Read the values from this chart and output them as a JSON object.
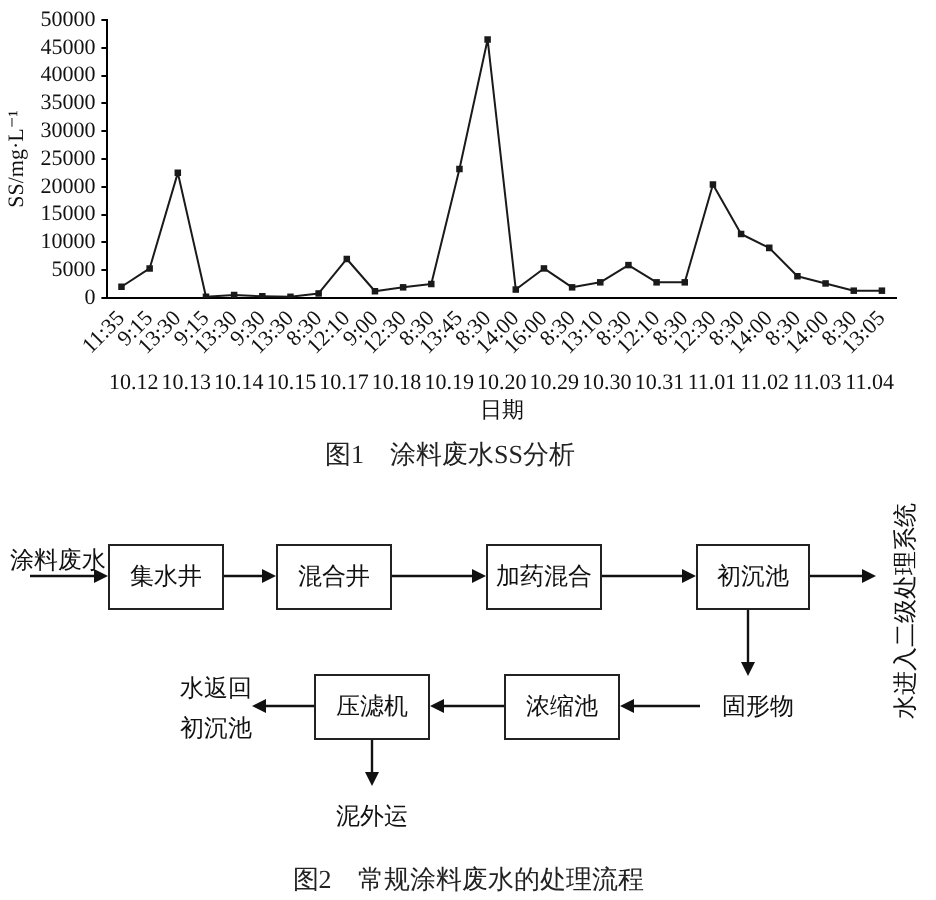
{
  "chart_data": [
    {
      "type": "line",
      "title": "图1　涂料废水SS分析",
      "xlabel": "日期",
      "ylabel": "SS/mg·L⁻¹",
      "categories": [
        "11:35",
        "9:15",
        "13:30",
        "9:15",
        "13:30",
        "9:30",
        "13:30",
        "8:30",
        "12:10",
        "9:00",
        "12:30",
        "8:30",
        "13:45",
        "8:30",
        "14:00",
        "16:00",
        "8:30",
        "13:10",
        "8:30",
        "12:10",
        "8:30",
        "12:30",
        "8:30",
        "14:00",
        "8:30",
        "14:00",
        "8:30",
        "13:05"
      ],
      "series": [
        {
          "color": "#1a1a1a",
          "values": [
            2000,
            5300,
            22500,
            200,
            500,
            300,
            200,
            800,
            7000,
            1200,
            1900,
            2500,
            23200,
            46500,
            1500,
            5300,
            1900,
            2800,
            5900,
            2800,
            2800,
            20400,
            11500,
            9000,
            3900,
            2600,
            1300,
            1300
          ]
        }
      ],
      "annotations": [
        "10.12",
        "10.13",
        "10.14",
        "10.15",
        "10.17",
        "10.18",
        "10.19",
        "10.20",
        "10.29",
        "10.30",
        "10.31",
        "11.01",
        "11.02",
        "11.03",
        "11.04"
      ],
      "ylim": [
        0,
        50000
      ],
      "yticks": [
        0,
        5000,
        10000,
        15000,
        20000,
        25000,
        30000,
        35000,
        40000,
        45000,
        50000
      ],
      "grid": false,
      "legend": false,
      "marker": "square",
      "line_style": "solid"
    },
    {
      "type": "other",
      "title": "图2　常规涂料废水的处理流程",
      "annotations": [
        "涂料废水",
        "集水井",
        "混合井",
        "加药混合",
        "初沉池",
        "水进入二级处理系统",
        "固形物",
        "浓缩池",
        "压滤机",
        "水返回初沉池",
        "泥外运"
      ]
    }
  ]
}
